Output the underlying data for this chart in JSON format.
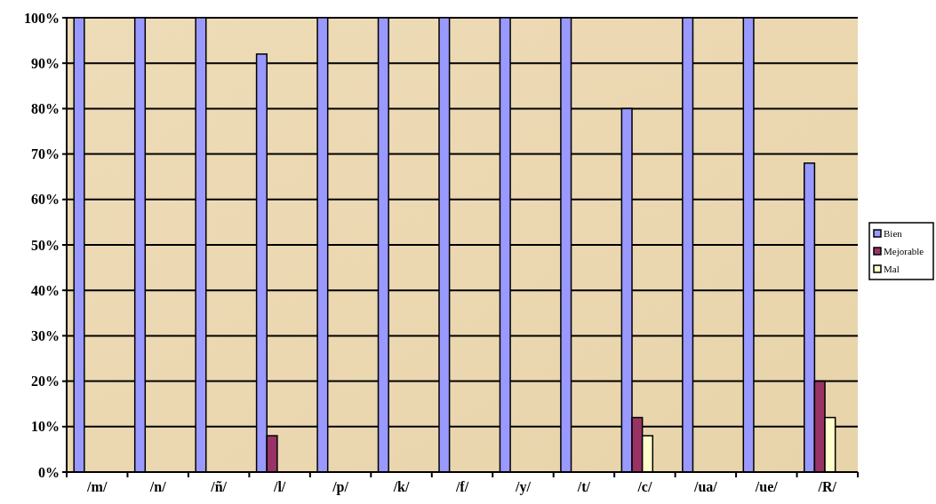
{
  "chart_data": {
    "type": "bar",
    "categories": [
      "/m/",
      "/n/",
      "/ñ/",
      "/l/",
      "/p/",
      "/k/",
      "/f/",
      "/y/",
      "/t/",
      "/c/",
      "/ua/",
      "/ue/",
      "/R/"
    ],
    "series": [
      {
        "name": "Bien",
        "color": "#9999ff",
        "values": [
          100,
          100,
          100,
          92,
          100,
          100,
          100,
          100,
          100,
          80,
          100,
          100,
          68
        ]
      },
      {
        "name": "Mejorable",
        "color": "#993366",
        "values": [
          0,
          0,
          0,
          8,
          0,
          0,
          0,
          0,
          0,
          12,
          0,
          0,
          20
        ]
      },
      {
        "name": "Mal",
        "color": "#ffffcc",
        "values": [
          0,
          0,
          0,
          0,
          0,
          0,
          0,
          0,
          0,
          8,
          0,
          0,
          12
        ]
      }
    ],
    "ylim": [
      0,
      100
    ],
    "yticks": [
      {
        "value": 0,
        "label": "0%"
      },
      {
        "value": 10,
        "label": "10%"
      },
      {
        "value": 20,
        "label": "20%"
      },
      {
        "value": 30,
        "label": "30%"
      },
      {
        "value": 40,
        "label": "40%"
      },
      {
        "value": 50,
        "label": "50%"
      },
      {
        "value": 60,
        "label": "60%"
      },
      {
        "value": 70,
        "label": "70%"
      },
      {
        "value": 80,
        "label": "80%"
      },
      {
        "value": 90,
        "label": "90%"
      },
      {
        "value": 100,
        "label": "100%"
      }
    ],
    "grid": "y",
    "legend": "right"
  }
}
